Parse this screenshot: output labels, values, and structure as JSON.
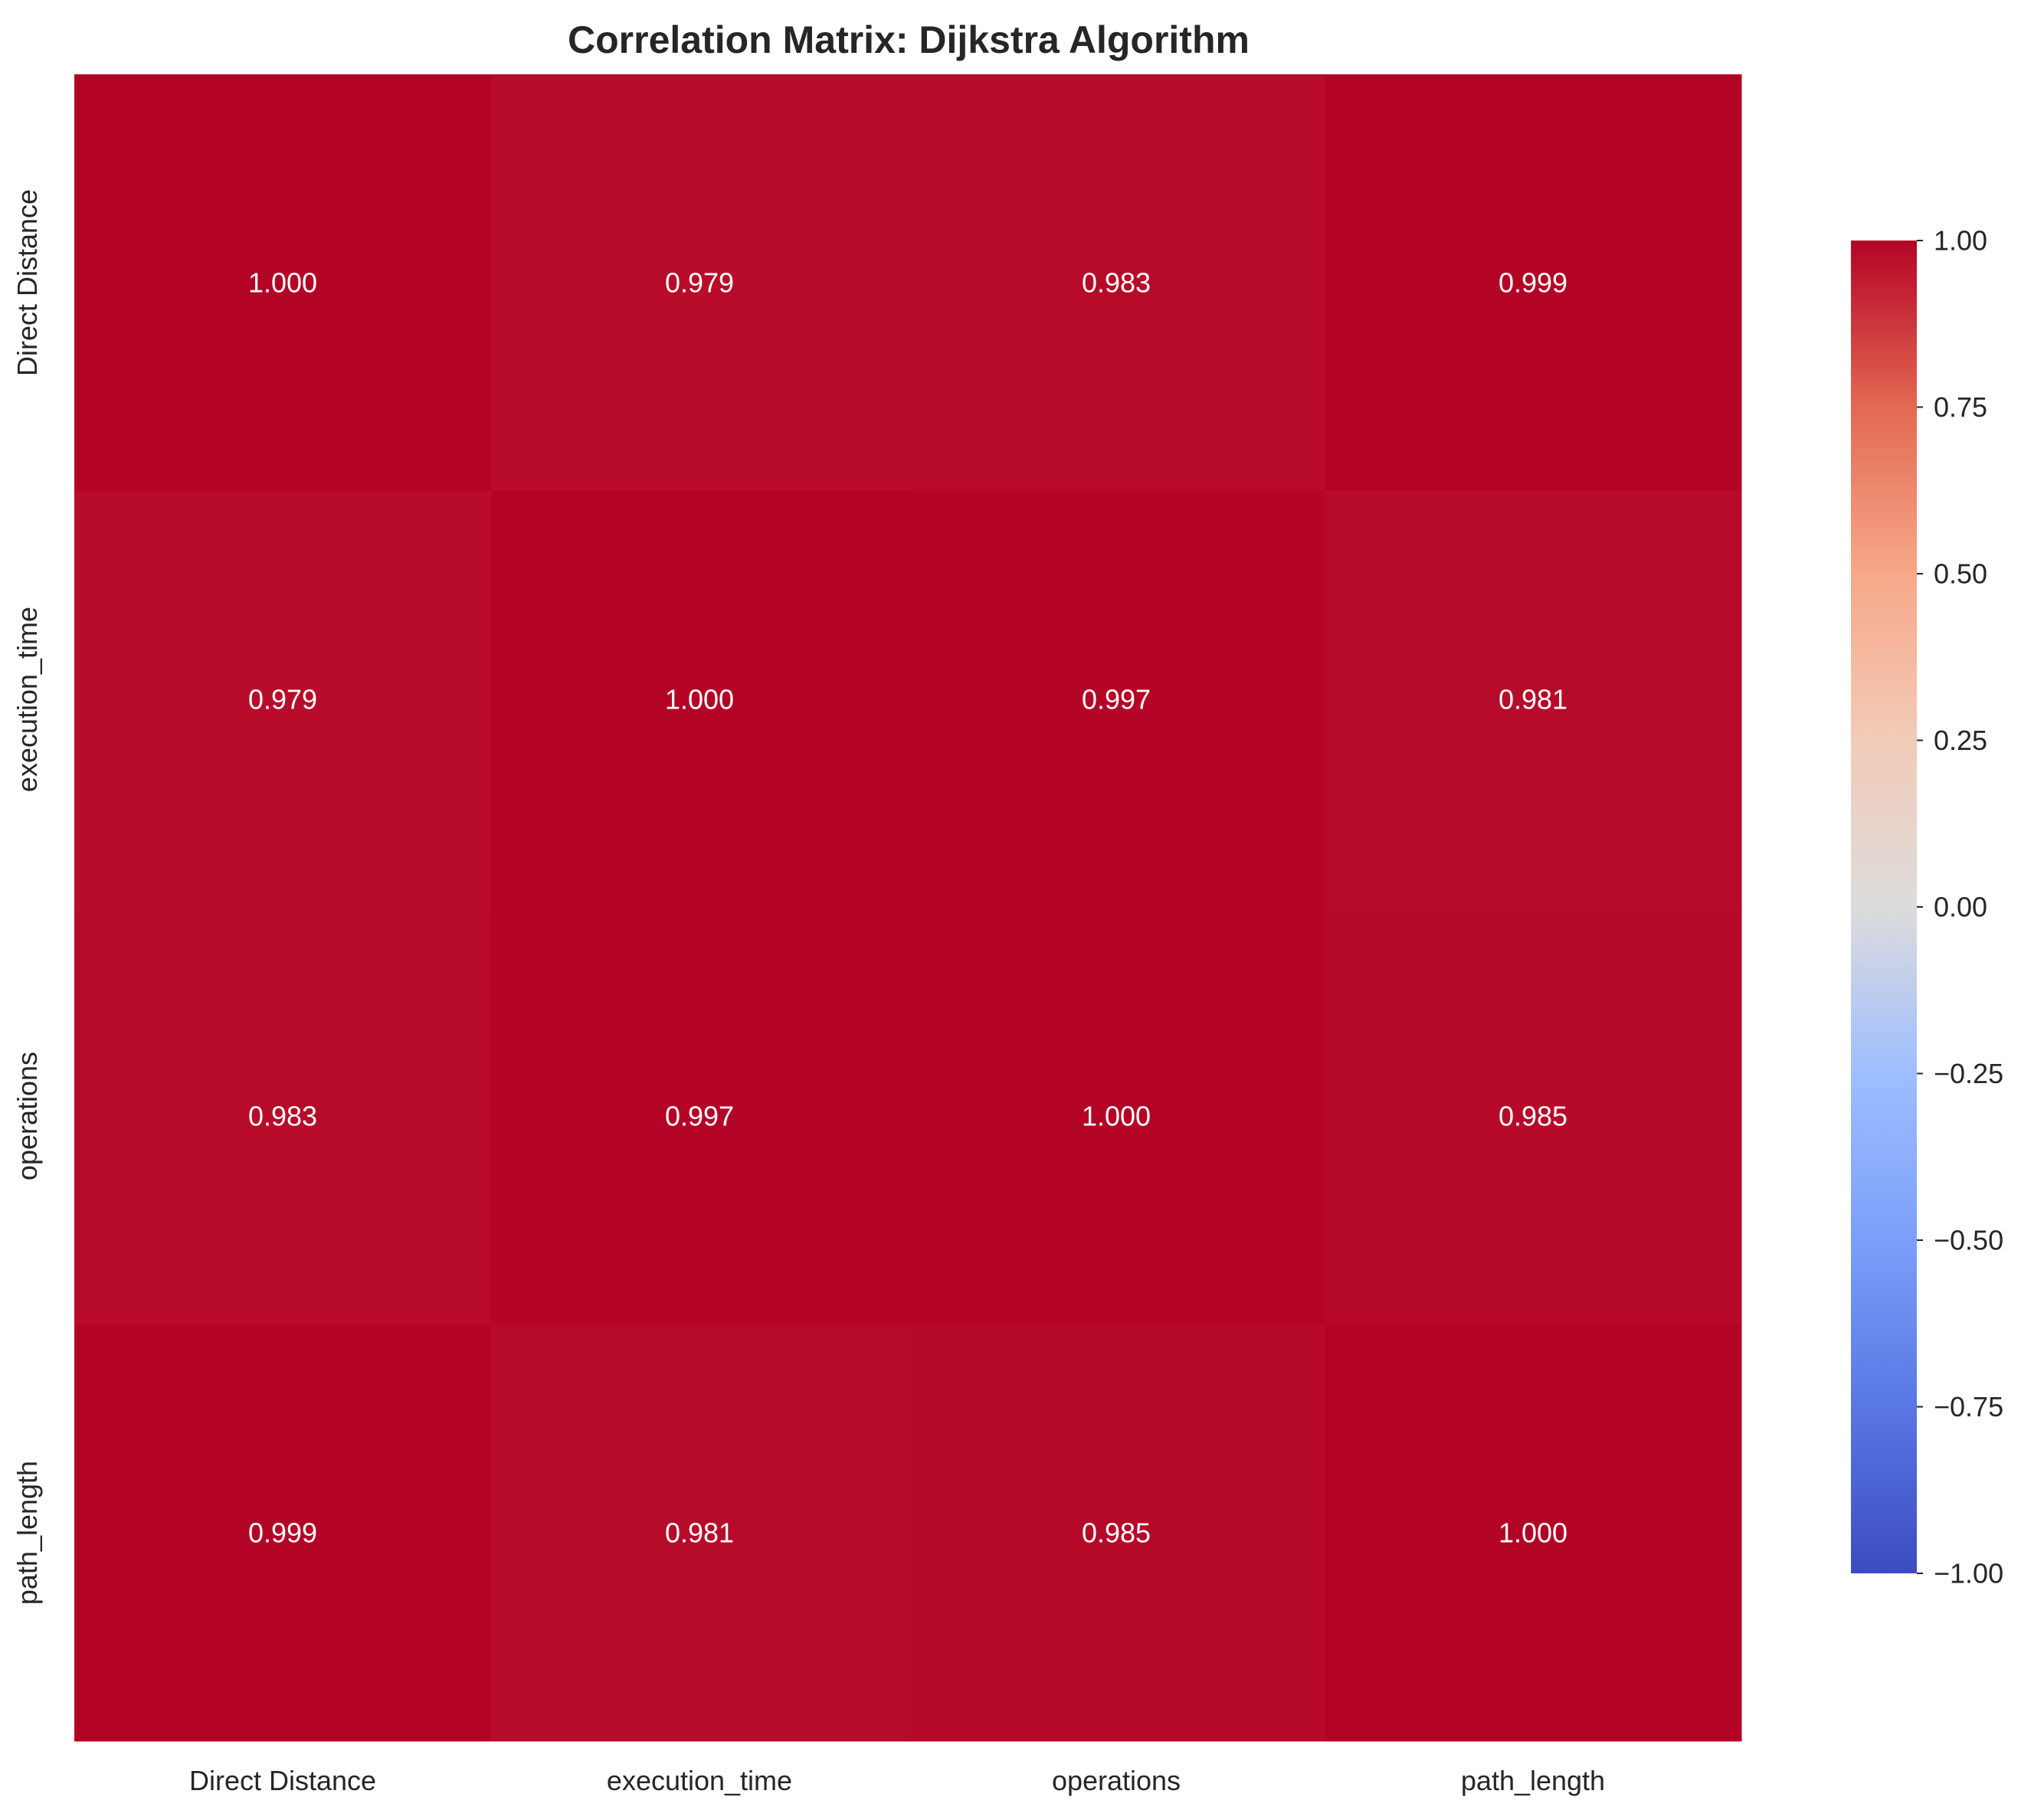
{
  "chart_data": {
    "type": "heatmap",
    "title": "Correlation Matrix: Dijkstra Algorithm",
    "x_labels": [
      "Direct Distance",
      "execution_time",
      "operations",
      "path_length"
    ],
    "y_labels": [
      "Direct Distance",
      "execution_time",
      "operations",
      "path_length"
    ],
    "values": [
      [
        1.0,
        0.979,
        0.983,
        0.999
      ],
      [
        0.979,
        1.0,
        0.997,
        0.981
      ],
      [
        0.983,
        0.997,
        1.0,
        0.985
      ],
      [
        0.999,
        0.981,
        0.985,
        1.0
      ]
    ],
    "value_format": "3 decimals",
    "colorscale": "coolwarm",
    "colorbar": {
      "range": [
        -1.0,
        1.0
      ],
      "ticks": [
        1.0,
        0.75,
        0.5,
        0.25,
        0.0,
        -0.25,
        -0.5,
        -0.75,
        -1.0
      ],
      "tick_labels": [
        "1.00",
        "0.75",
        "0.50",
        "0.25",
        "0.00",
        "−0.25",
        "−0.50",
        "−0.75",
        "−1.00"
      ]
    },
    "annotation_color": "#ffffff",
    "grid": false,
    "legend": "colorbar right"
  }
}
